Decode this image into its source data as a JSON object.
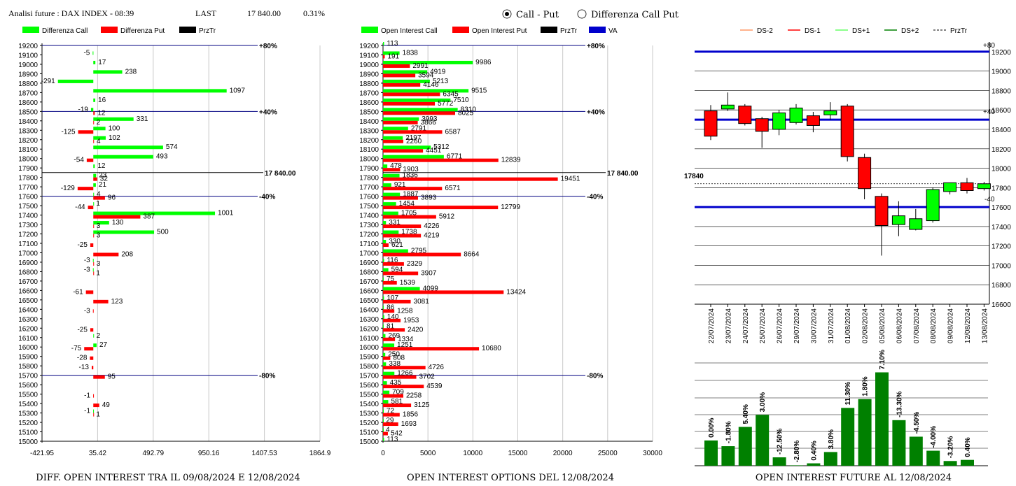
{
  "header": {
    "title": "Analisi future : DAX INDEX - 08:39",
    "last_label": "LAST",
    "last_value": "17 840.00",
    "change": "0.31%",
    "radio_call_put": "Call - Put",
    "radio_diff": "Differenza Call Put",
    "selected": "call_put"
  },
  "colors": {
    "green": "#00ff00",
    "red": "#ff0000",
    "darkgreen": "#008000",
    "blue": "#0000cc",
    "navy": "#000080"
  },
  "panels": {
    "diff": {
      "legend": [
        "Differenza Call",
        "Differenza Put",
        "PrzTr"
      ],
      "bottom_title": "DIFF. OPEN INTEREST TRA IL 09/08/2024 E 12/08/2024",
      "x_ticks": [
        "-421.95",
        "35.42",
        "492.79",
        "950.16",
        "1407.53",
        "1864.9"
      ],
      "price_label": "17 840.00",
      "markers": [
        {
          "strike": 19200,
          "label": "+80%"
        },
        {
          "strike": 18500,
          "label": "+40%"
        },
        {
          "strike": 17600,
          "label": "-40%"
        },
        {
          "strike": 15700,
          "label": "-80%"
        }
      ]
    },
    "oi": {
      "legend": [
        "Open Interest Call",
        "Open Interest Put",
        "PrzTr",
        "VA"
      ],
      "bottom_title": "OPEN INTEREST OPTIONS DEL 12/08/2024",
      "x_ticks": [
        "0",
        "5000",
        "10000",
        "15000",
        "20000",
        "25000",
        "30000"
      ],
      "price_label": "17 840.00",
      "markers": [
        {
          "strike": 19200,
          "label": "+80%"
        },
        {
          "strike": 18500,
          "label": "+40%"
        },
        {
          "strike": 17600,
          "label": "-40%"
        },
        {
          "strike": 15700,
          "label": "-80%"
        }
      ]
    },
    "candles": {
      "legend": [
        "DS-2",
        "DS-1",
        "DS+1",
        "DS+2",
        "PrzTr"
      ],
      "price_label": "17840",
      "marker_top": "+80",
      "marker_mid": "+40",
      "marker_low": "-40",
      "bottom_title": "OPEN INTEREST FUTURE AL 12/08/2024"
    }
  },
  "chart_data": [
    {
      "type": "bar",
      "orientation": "horizontal",
      "strikes": [
        19200,
        19100,
        19000,
        18900,
        18800,
        18700,
        18600,
        18500,
        18400,
        18300,
        18200,
        18100,
        18000,
        17900,
        17800,
        17700,
        17600,
        17500,
        17400,
        17300,
        17200,
        17100,
        17000,
        16900,
        16800,
        16700,
        16600,
        16500,
        16400,
        16300,
        16200,
        16100,
        16000,
        15900,
        15800,
        15700,
        15600,
        15500,
        15400,
        15300,
        15200,
        15100,
        15000
      ],
      "series": [
        {
          "name": "Differenza Call",
          "values": [
            0,
            -5,
            17,
            238,
            -291,
            1097,
            16,
            -19,
            331,
            100,
            102,
            574,
            493,
            12,
            23,
            21,
            4,
            1,
            1001,
            130,
            500,
            0,
            0,
            -3,
            -3,
            0,
            0,
            0,
            0,
            0,
            0,
            2,
            27,
            0,
            0,
            0,
            0,
            0,
            0,
            -1,
            0,
            0,
            0
          ]
        },
        {
          "name": "Differenza Put",
          "values": [
            0,
            0,
            0,
            0,
            0,
            0,
            0,
            12,
            2,
            -125,
            4,
            0,
            -54,
            0,
            32,
            -129,
            96,
            -44,
            387,
            3,
            3,
            -25,
            208,
            3,
            1,
            0,
            -61,
            123,
            -3,
            0,
            -25,
            0,
            -75,
            -28,
            -13,
            95,
            0,
            -1,
            49,
            1,
            0,
            0,
            0
          ]
        }
      ],
      "xlim": [
        -421.95,
        1864.9
      ],
      "ylim": [
        15000,
        19200
      ]
    },
    {
      "type": "bar",
      "orientation": "horizontal",
      "strikes": [
        19200,
        19100,
        19000,
        18900,
        18800,
        18700,
        18600,
        18500,
        18400,
        18300,
        18200,
        18100,
        18000,
        17900,
        17800,
        17700,
        17600,
        17500,
        17400,
        17300,
        17200,
        17100,
        17000,
        16900,
        16800,
        16700,
        16600,
        16500,
        16400,
        16300,
        16200,
        16100,
        16000,
        15900,
        15800,
        15700,
        15600,
        15500,
        15400,
        15300,
        15200,
        15100,
        15000
      ],
      "series": [
        {
          "name": "Open Interest Call",
          "values": [
            113,
            1838,
            9986,
            4919,
            5213,
            9515,
            7510,
            8310,
            3993,
            2791,
            2197,
            5312,
            6771,
            478,
            1836,
            921,
            1887,
            1454,
            1705,
            331,
            1738,
            330,
            2795,
            116,
            594,
            75,
            4099,
            107,
            86,
            140,
            81,
            269,
            1251,
            250,
            338,
            1266,
            435,
            709,
            581,
            72,
            29,
            4,
            113
          ]
        },
        {
          "name": "Open Interest Put",
          "values": [
            0,
            191,
            2991,
            3594,
            4146,
            6345,
            5772,
            8025,
            3866,
            6587,
            2260,
            4451,
            12839,
            1903,
            19451,
            6571,
            3893,
            12799,
            5912,
            4226,
            4219,
            621,
            8664,
            2329,
            3907,
            1539,
            13424,
            3081,
            1258,
            1953,
            2420,
            1334,
            10680,
            808,
            4726,
            3702,
            4539,
            2258,
            3125,
            1856,
            1693,
            542,
            0
          ]
        }
      ],
      "xlim": [
        0,
        30000
      ],
      "ylim": [
        15000,
        19200
      ]
    },
    {
      "type": "candlestick",
      "dates": [
        "22/07/2024",
        "23/07/2024",
        "24/07/2024",
        "25/07/2024",
        "26/07/2024",
        "29/07/2024",
        "30/07/2024",
        "31/07/2024",
        "01/08/2024",
        "02/08/2024",
        "05/08/2024",
        "06/08/2024",
        "07/08/2024",
        "08/08/2024",
        "09/08/2024",
        "12/08/2024",
        "13/08/2024"
      ],
      "open": [
        18590,
        18610,
        18640,
        18510,
        18400,
        18470,
        18540,
        18550,
        18640,
        18110,
        17710,
        17420,
        17370,
        17460,
        17760,
        17850,
        17790
      ],
      "close": [
        18330,
        18650,
        18460,
        18380,
        18570,
        18620,
        18440,
        18590,
        18120,
        17790,
        17410,
        17510,
        17480,
        17780,
        17850,
        17770,
        17840
      ],
      "high": [
        18650,
        18780,
        18660,
        18530,
        18600,
        18660,
        18580,
        18680,
        18660,
        18150,
        17740,
        17660,
        17580,
        17800,
        17850,
        17900,
        17860
      ],
      "low": [
        18290,
        18590,
        18440,
        18210,
        18340,
        18450,
        18370,
        18500,
        18070,
        17680,
        17100,
        17300,
        17360,
        17440,
        17730,
        17740,
        17770
      ],
      "ylim": [
        16600,
        19300
      ],
      "y_ticks": [
        16600,
        16800,
        17000,
        17200,
        17400,
        17600,
        17800,
        18000,
        18200,
        18400,
        18600,
        18800,
        19000,
        19200
      ],
      "levels": {
        "plus80": 19200,
        "plus40": 18500,
        "minus40": 17600,
        "przTr": 17840
      }
    },
    {
      "type": "bar",
      "categories": [
        "22/07/2024",
        "23/07/2024",
        "24/07/2024",
        "25/07/2024",
        "26/07/2024",
        "29/07/2024",
        "30/07/2024",
        "31/07/2024",
        "01/08/2024",
        "02/08/2024",
        "05/08/2024",
        "06/08/2024",
        "07/08/2024",
        "08/08/2024",
        "09/08/2024",
        "12/08/2024",
        "13/08/2024"
      ],
      "values": [
        29.5,
        22.8,
        45.3,
        59.4,
        9.8,
        0.5,
        2.8,
        16.0,
        67.5,
        77.8,
        109.0,
        53.2,
        33.9,
        17.5,
        5.5,
        6.8,
        0
      ],
      "labels": [
        "0.00%",
        "-1.80%",
        "5.40%",
        "3.00%",
        "-12.50%",
        "-2.80%",
        "0.40%",
        "3.80%",
        "11.30%",
        "1.80%",
        "7.10%",
        "-13.30%",
        "-4.50%",
        "-4.00%",
        "-3.20%",
        "0.40%",
        ""
      ],
      "ylim": [
        0,
        120
      ]
    }
  ]
}
